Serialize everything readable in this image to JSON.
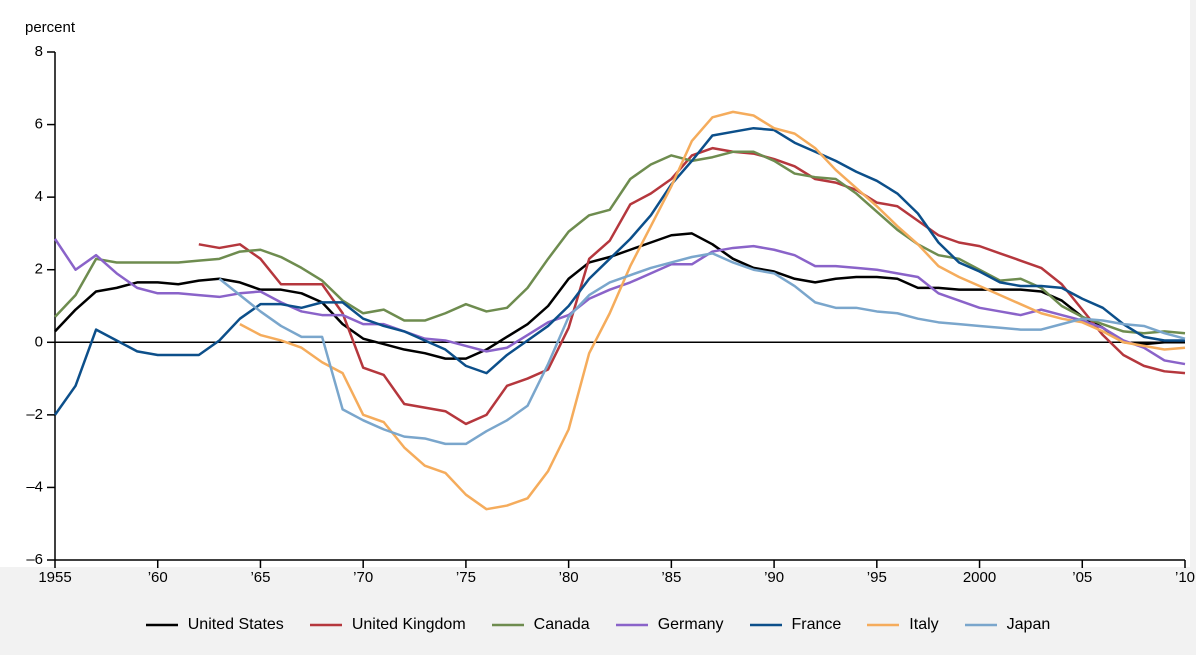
{
  "chart_data": {
    "type": "line",
    "y_label": "percent",
    "x": [
      1955,
      1956,
      1957,
      1958,
      1959,
      1960,
      1961,
      1962,
      1963,
      1964,
      1965,
      1966,
      1967,
      1968,
      1969,
      1970,
      1971,
      1972,
      1973,
      1974,
      1975,
      1976,
      1977,
      1978,
      1979,
      1980,
      1981,
      1982,
      1983,
      1984,
      1985,
      1986,
      1987,
      1988,
      1989,
      1990,
      1991,
      1992,
      1993,
      1994,
      1995,
      1996,
      1997,
      1998,
      1999,
      2000,
      2001,
      2002,
      2003,
      2004,
      2005,
      2006,
      2007,
      2008,
      2009,
      2010
    ],
    "xlim": [
      1955,
      2010
    ],
    "xticks": [
      1955,
      {
        "value": 1960,
        "label": "’60"
      },
      {
        "value": 1965,
        "label": "’65"
      },
      {
        "value": 1970,
        "label": "’70"
      },
      {
        "value": 1975,
        "label": "’75"
      },
      {
        "value": 1980,
        "label": "’80"
      },
      {
        "value": 1985,
        "label": "’85"
      },
      {
        "value": 1990,
        "label": "’90"
      },
      {
        "value": 1995,
        "label": "’95"
      },
      2000,
      {
        "value": 2005,
        "label": "’05"
      },
      {
        "value": 2010,
        "label": "’10"
      }
    ],
    "ylim": [
      -6,
      8
    ],
    "yticks": [
      {
        "value": -6,
        "label": "–6"
      },
      {
        "value": -4,
        "label": "–4"
      },
      {
        "value": -2,
        "label": "–2"
      },
      0,
      2,
      4,
      6,
      8
    ],
    "series": [
      {
        "name": "United States",
        "color": "#000000",
        "values": [
          0.3,
          0.9,
          1.4,
          1.5,
          1.65,
          1.65,
          1.6,
          1.7,
          1.75,
          1.65,
          1.45,
          1.45,
          1.35,
          1.1,
          0.5,
          0.1,
          -0.05,
          -0.2,
          -0.3,
          -0.45,
          -0.45,
          -0.2,
          0.15,
          0.5,
          1.0,
          1.75,
          2.2,
          2.35,
          2.55,
          2.75,
          2.95,
          3.0,
          2.7,
          2.3,
          2.05,
          1.95,
          1.75,
          1.65,
          1.75,
          1.8,
          1.8,
          1.75,
          1.5,
          1.5,
          1.45,
          1.45,
          1.45,
          1.45,
          1.4,
          1.15,
          0.7,
          0.4,
          0.0,
          -0.05,
          0.0,
          0.0
        ]
      },
      {
        "name": "United Kingdom",
        "color": "#b5373d",
        "values": [
          null,
          null,
          null,
          null,
          null,
          null,
          null,
          2.7,
          2.6,
          2.7,
          2.3,
          1.6,
          1.6,
          1.6,
          0.8,
          -0.7,
          -0.9,
          -1.7,
          -1.8,
          -1.9,
          -2.25,
          -2.0,
          -1.2,
          -1.0,
          -0.75,
          0.4,
          2.3,
          2.8,
          3.8,
          4.1,
          4.5,
          5.15,
          5.35,
          5.25,
          5.2,
          5.05,
          4.85,
          4.5,
          4.4,
          4.2,
          3.85,
          3.75,
          3.35,
          2.95,
          2.75,
          2.65,
          2.45,
          2.25,
          2.05,
          1.6,
          0.9,
          0.2,
          -0.35,
          -0.65,
          -0.8,
          -0.85
        ]
      },
      {
        "name": "Canada",
        "color": "#6e8c4f",
        "values": [
          0.7,
          1.3,
          2.3,
          2.2,
          2.2,
          2.2,
          2.2,
          2.25,
          2.3,
          2.5,
          2.55,
          2.35,
          2.05,
          1.7,
          1.15,
          0.8,
          0.9,
          0.6,
          0.6,
          0.8,
          1.05,
          0.85,
          0.95,
          1.5,
          2.3,
          3.05,
          3.5,
          3.65,
          4.5,
          4.9,
          5.15,
          5.0,
          5.1,
          5.25,
          5.25,
          5.0,
          4.65,
          4.55,
          4.5,
          4.1,
          3.6,
          3.1,
          2.7,
          2.4,
          2.3,
          2.0,
          1.7,
          1.75,
          1.5,
          1.0,
          0.7,
          0.5,
          0.3,
          0.25,
          0.3,
          0.25
        ]
      },
      {
        "name": "Germany",
        "color": "#8a63c9",
        "values": [
          2.85,
          2.0,
          2.4,
          1.9,
          1.5,
          1.35,
          1.35,
          1.3,
          1.25,
          1.35,
          1.4,
          1.1,
          0.85,
          0.75,
          0.75,
          0.5,
          0.5,
          0.3,
          0.1,
          0.05,
          -0.1,
          -0.25,
          -0.15,
          0.2,
          0.55,
          0.75,
          1.2,
          1.45,
          1.65,
          1.9,
          2.15,
          2.15,
          2.5,
          2.6,
          2.65,
          2.55,
          2.4,
          2.1,
          2.1,
          2.05,
          2.0,
          1.9,
          1.8,
          1.35,
          1.15,
          0.95,
          0.85,
          0.75,
          0.9,
          0.75,
          0.6,
          0.4,
          0.05,
          -0.15,
          -0.5,
          -0.6
        ]
      },
      {
        "name": "France",
        "color": "#0c4f8a",
        "values": [
          -2.0,
          -1.2,
          0.35,
          0.05,
          -0.25,
          -0.35,
          -0.35,
          -0.35,
          0.05,
          0.65,
          1.05,
          1.05,
          0.95,
          1.1,
          1.1,
          0.65,
          0.45,
          0.3,
          0.05,
          -0.2,
          -0.65,
          -0.85,
          -0.35,
          0.05,
          0.45,
          1.0,
          1.75,
          2.3,
          2.85,
          3.5,
          4.35,
          5.0,
          5.7,
          5.8,
          5.9,
          5.85,
          5.5,
          5.25,
          5.0,
          4.7,
          4.45,
          4.1,
          3.55,
          2.75,
          2.2,
          1.95,
          1.65,
          1.55,
          1.55,
          1.5,
          1.2,
          0.95,
          0.5,
          0.15,
          0.05,
          0.05
        ]
      },
      {
        "name": "Italy",
        "color": "#f5ac5c",
        "values": [
          null,
          null,
          null,
          null,
          null,
          null,
          null,
          null,
          null,
          0.5,
          0.2,
          0.05,
          -0.15,
          -0.55,
          -0.85,
          -2.0,
          -2.2,
          -2.9,
          -3.4,
          -3.6,
          -4.2,
          -4.6,
          -4.5,
          -4.3,
          -3.55,
          -2.4,
          -0.3,
          0.8,
          2.1,
          3.2,
          4.3,
          5.55,
          6.2,
          6.35,
          6.25,
          5.9,
          5.75,
          5.35,
          4.75,
          4.25,
          3.75,
          3.2,
          2.7,
          2.1,
          1.8,
          1.55,
          1.3,
          1.05,
          0.8,
          0.65,
          0.55,
          0.3,
          0.0,
          -0.1,
          -0.2,
          -0.15
        ]
      },
      {
        "name": "Japan",
        "color": "#7aa6cc",
        "values": [
          null,
          null,
          null,
          null,
          null,
          null,
          null,
          null,
          1.75,
          1.3,
          0.85,
          0.45,
          0.15,
          0.15,
          -1.85,
          -2.15,
          -2.4,
          -2.6,
          -2.65,
          -2.8,
          -2.8,
          -2.45,
          -2.15,
          -1.75,
          -0.6,
          0.7,
          1.3,
          1.65,
          1.85,
          2.05,
          2.2,
          2.35,
          2.45,
          2.2,
          2.0,
          1.9,
          1.55,
          1.1,
          0.95,
          0.95,
          0.85,
          0.8,
          0.65,
          0.55,
          0.5,
          0.45,
          0.4,
          0.35,
          0.35,
          0.5,
          0.65,
          0.6,
          0.5,
          0.45,
          0.25,
          0.1
        ]
      }
    ]
  }
}
